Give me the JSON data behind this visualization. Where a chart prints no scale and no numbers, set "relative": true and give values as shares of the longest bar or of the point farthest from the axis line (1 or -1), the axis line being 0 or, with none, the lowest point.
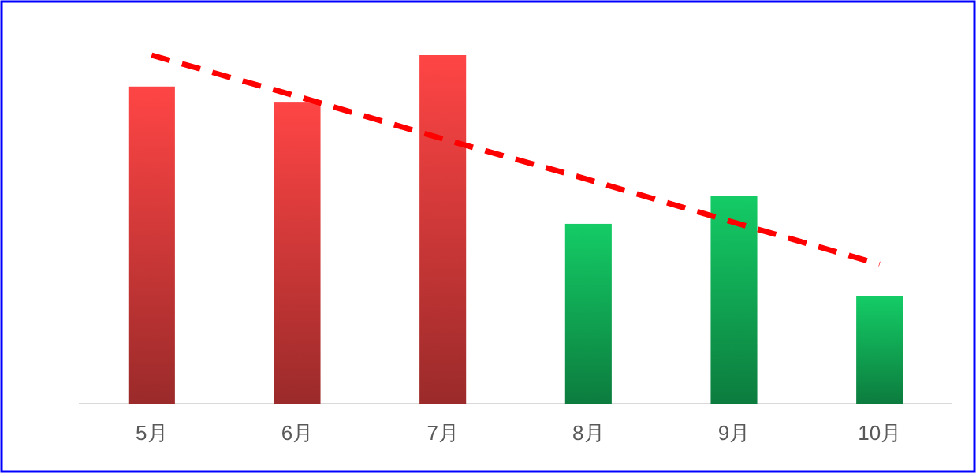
{
  "chart_data": {
    "type": "bar",
    "relative": true,
    "categories": [
      "5月",
      "6月",
      "7月",
      "8月",
      "9月",
      "10月"
    ],
    "series": [
      {
        "values": [
          0.91,
          0.864,
          1,
          0.516,
          0.597,
          0.308
        ],
        "colors": [
          "#ff4545",
          "#ff4545",
          "#ff4545",
          "#14cc66",
          "#14cc66",
          "#14cc66"
        ]
      },
      {
        "type": "line",
        "values": [
          1.0,
          0.882,
          0.76,
          0.643,
          0.52,
          0.4
        ],
        "color": "#ff0000",
        "line_style": "dashed"
      }
    ]
  }
}
